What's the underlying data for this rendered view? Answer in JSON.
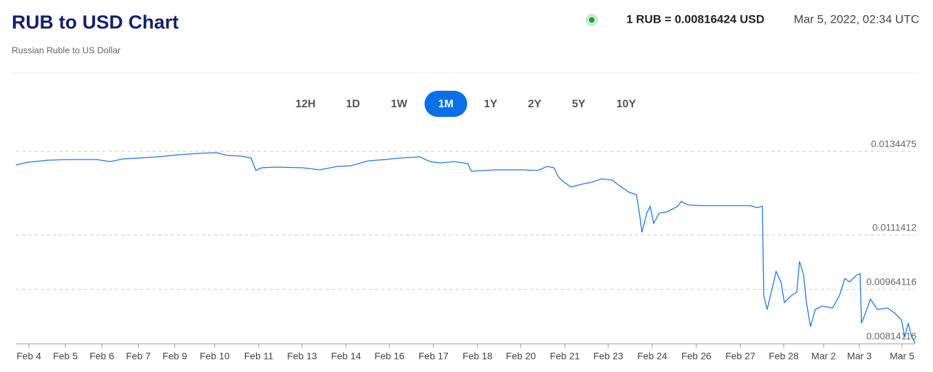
{
  "header": {
    "title": "RUB to USD Chart",
    "subtitle": "Russian Ruble to US Dollar",
    "rate": "1 RUB = 0.00816424 USD",
    "timestamp": "Mar 5, 2022, 02:34 UTC"
  },
  "range_buttons": [
    {
      "label": "12H"
    },
    {
      "label": "1D"
    },
    {
      "label": "1W"
    },
    {
      "label": "1M",
      "active": true
    },
    {
      "label": "1Y"
    },
    {
      "label": "2Y"
    },
    {
      "label": "5Y"
    },
    {
      "label": "10Y"
    }
  ],
  "chart_data": {
    "type": "line",
    "grid": true,
    "xlim": [
      0,
      1307
    ],
    "xticks": [
      {
        "value": 19,
        "label": "Feb 4"
      },
      {
        "value": 72,
        "label": "Feb 5"
      },
      {
        "value": 125,
        "label": "Feb 6"
      },
      {
        "value": 178,
        "label": "Feb 7"
      },
      {
        "value": 231,
        "label": "Feb 9"
      },
      {
        "value": 289,
        "label": "Feb 10"
      },
      {
        "value": 353,
        "label": "Feb 11"
      },
      {
        "value": 416,
        "label": "Feb 13"
      },
      {
        "value": 480,
        "label": "Feb 14"
      },
      {
        "value": 543,
        "label": "Feb 16"
      },
      {
        "value": 607,
        "label": "Feb 17"
      },
      {
        "value": 671,
        "label": "Feb 18"
      },
      {
        "value": 734,
        "label": "Feb 20"
      },
      {
        "value": 798,
        "label": "Feb 21"
      },
      {
        "value": 861,
        "label": "Feb 23"
      },
      {
        "value": 925,
        "label": "Feb 24"
      },
      {
        "value": 989,
        "label": "Feb 26"
      },
      {
        "value": 1053,
        "label": "Feb 27"
      },
      {
        "value": 1116,
        "label": "Feb 28"
      },
      {
        "value": 1174,
        "label": "Mar 2"
      },
      {
        "value": 1226,
        "label": "Mar 3"
      },
      {
        "value": 1288,
        "label": "Mar 5"
      }
    ],
    "ylim": [
      0.00814116,
      0.01383
    ],
    "yticks": [
      0.00814116,
      0.00964116,
      0.0111412,
      0.0134475
    ],
    "color": "#1a73e8",
    "x": [
      0,
      17,
      47,
      77,
      117,
      137,
      157,
      177,
      207,
      237,
      267,
      292,
      307,
      327,
      342,
      349,
      357,
      377,
      417,
      442,
      467,
      487,
      512,
      537,
      557,
      587,
      602,
      617,
      637,
      657,
      662,
      697,
      737,
      759,
      772,
      782,
      789,
      797,
      807,
      822,
      837,
      852,
      867,
      877,
      892,
      902,
      907,
      910,
      917,
      922,
      927,
      935,
      947,
      962,
      967,
      977,
      997,
      1037,
      1067,
      1077,
      1085,
      1087,
      1092,
      1099,
      1105,
      1112,
      1117,
      1127,
      1135,
      1139,
      1145,
      1149,
      1155,
      1162,
      1172,
      1187,
      1197,
      1205,
      1212,
      1222,
      1227,
      1229,
      1235,
      1242,
      1252,
      1267,
      1277,
      1287,
      1292,
      1297,
      1302,
      1307
    ],
    "values": [
      0.0130708,
      0.0131466,
      0.0132035,
      0.0132225,
      0.0132225,
      0.0131656,
      0.0132414,
      0.0132604,
      0.0132983,
      0.0133552,
      0.0133931,
      0.0134121,
      0.0133362,
      0.0133173,
      0.0132604,
      0.0129191,
      0.012995,
      0.0130139,
      0.012995,
      0.012938,
      0.0130329,
      0.0130518,
      0.0131846,
      0.0132225,
      0.0132604,
      0.0132983,
      0.0131656,
      0.0131277,
      0.0131656,
      0.0131087,
      0.0129002,
      0.012938,
      0.012938,
      0.0129191,
      0.0130329,
      0.012995,
      0.0127295,
      0.0125968,
      0.0124641,
      0.0125399,
      0.0125968,
      0.0126916,
      0.0126537,
      0.012502,
      0.0123124,
      0.0122555,
      0.0116488,
      0.0112127,
      0.0117436,
      0.0119332,
      0.0114592,
      0.0117436,
      0.0117815,
      0.0119332,
      0.0120659,
      0.0119711,
      0.0119522,
      0.0119522,
      0.0119522,
      0.0118953,
      0.0119332,
      0.0094684,
      0.0090892,
      0.009658,
      0.010132,
      0.0098476,
      0.0092788,
      0.0094684,
      0.0095632,
      0.0104164,
      0.0100372,
      0.0092788,
      0.0086152,
      0.0090892,
      0.009184,
      0.0091271,
      0.0094684,
      0.0099424,
      0.0098476,
      0.0100372,
      0.0100751,
      0.00871,
      0.0089944,
      0.0093736,
      0.0090892,
      0.0091271,
      0.0089944,
      0.0088048,
      0.0083308,
      0.00871,
      0.0083308,
      0.0081602
    ]
  }
}
